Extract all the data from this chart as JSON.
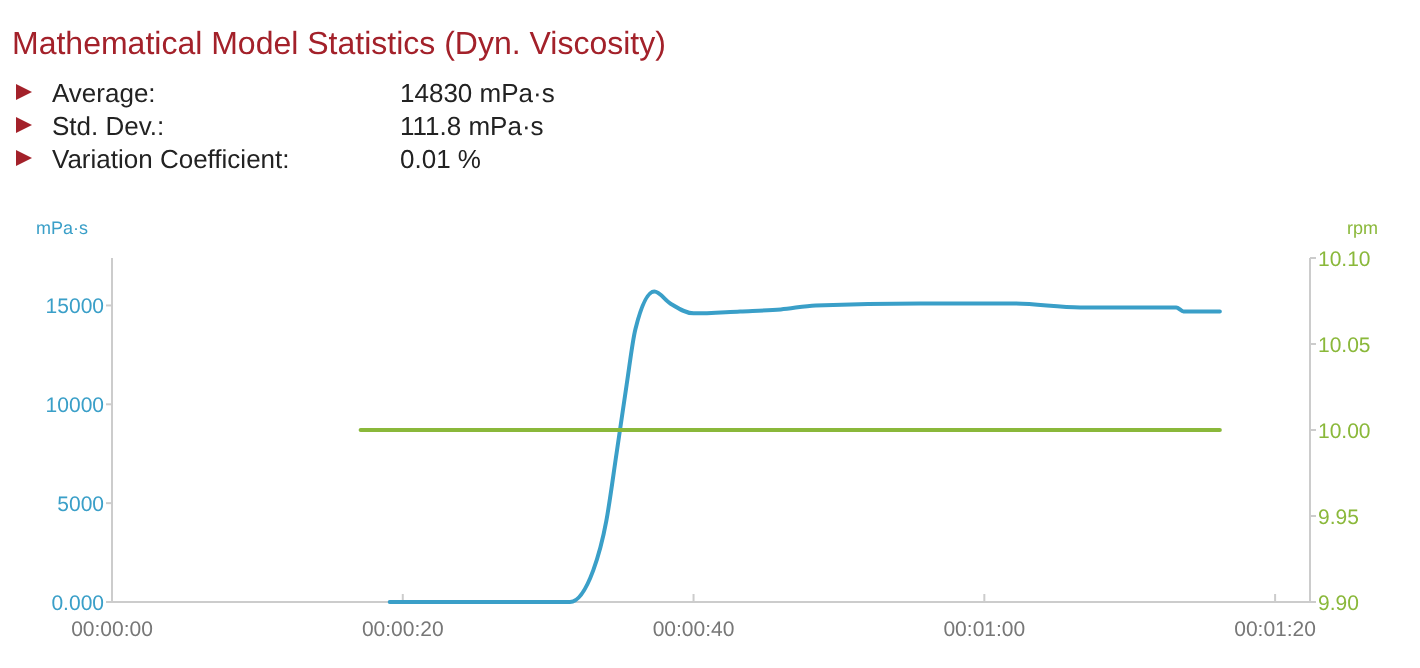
{
  "chart_data": {
    "type": "line",
    "title": "Mathematical Model Statistics (Dyn. Viscosity)",
    "annotations": [
      "Average:\t14830 mPa·s",
      "Std. Dev.:\t111.8 mPa·s",
      "Variation Coefficient:\t0.01 %"
    ],
    "ylabel": "mPa·s",
    "y2label": "rpm",
    "xlim": [
      0,
      82.4
    ],
    "xticks": [
      {
        "value": 0,
        "label": "00:00:00"
      },
      {
        "value": 20,
        "label": "00:00:20"
      },
      {
        "value": 40,
        "label": "00:00:40"
      },
      {
        "value": 60,
        "label": "00:01:00"
      },
      {
        "value": 80,
        "label": "00:01:20"
      }
    ],
    "ylim": [
      0,
      17400
    ],
    "yticks": [
      {
        "value": 0,
        "label": "0.000"
      },
      5000,
      10000,
      15000
    ],
    "y2lim": [
      9.9,
      10.1
    ],
    "y2ticks": [
      {
        "value": 9.9,
        "label": "9.90"
      },
      9.95,
      {
        "value": 10,
        "label": "10.00"
      },
      10.05,
      {
        "value": 10.1,
        "label": "10.10"
      }
    ],
    "grid": false,
    "marker": "none",
    "line_style": "solid",
    "series": [
      {
        "color": "#3a9fc8",
        "x": [
          19.1,
          25,
          31.5,
          33.1,
          34.0,
          34.7,
          35.4,
          36.0,
          37.3,
          38.4,
          40,
          43.2,
          46,
          48.4,
          55.6,
          62,
          66.6,
          73.2,
          73.7,
          76.2
        ],
        "values": [
          0,
          0,
          0,
          1600,
          4100,
          7500,
          11000,
          13800,
          15700,
          15100,
          14600,
          14700,
          14800,
          15000,
          15100,
          15100,
          14900,
          14900,
          14700,
          14700
        ]
      },
      {
        "color": "#8ab83a",
        "axis": "y2",
        "x": [
          17.1,
          76.2
        ],
        "values": [
          10,
          10
        ]
      }
    ]
  }
}
